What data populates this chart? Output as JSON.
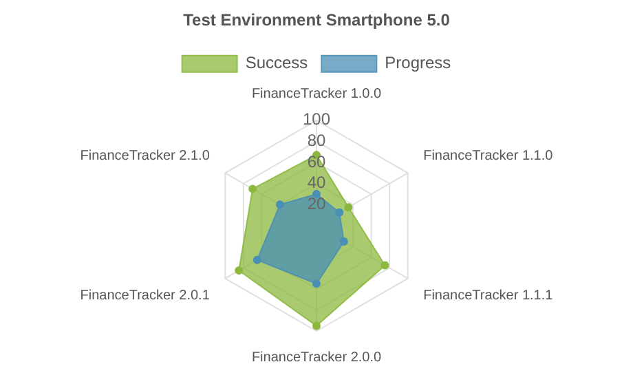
{
  "chart_data": {
    "type": "radar",
    "title": "Test Environment Smartphone 5.0",
    "categories": [
      "FinanceTracker 1.0.0",
      "FinanceTracker 1.1.0",
      "FinanceTracker 1.1.1",
      "FinanceTracker 2.0.0",
      "FinanceTracker 2.0.1",
      "FinanceTracker 2.1.0"
    ],
    "series": [
      {
        "name": "Success",
        "color": "#8cb83e",
        "values": [
          67,
          35,
          75,
          95,
          85,
          70
        ]
      },
      {
        "name": "Progress",
        "color": "#4a8fb5",
        "values": [
          30,
          25,
          30,
          55,
          65,
          40
        ]
      }
    ],
    "ylim": [
      0,
      100
    ],
    "yticks": [
      20,
      40,
      60,
      80,
      100
    ],
    "grid": true,
    "legend": "top",
    "marker": "circle"
  }
}
